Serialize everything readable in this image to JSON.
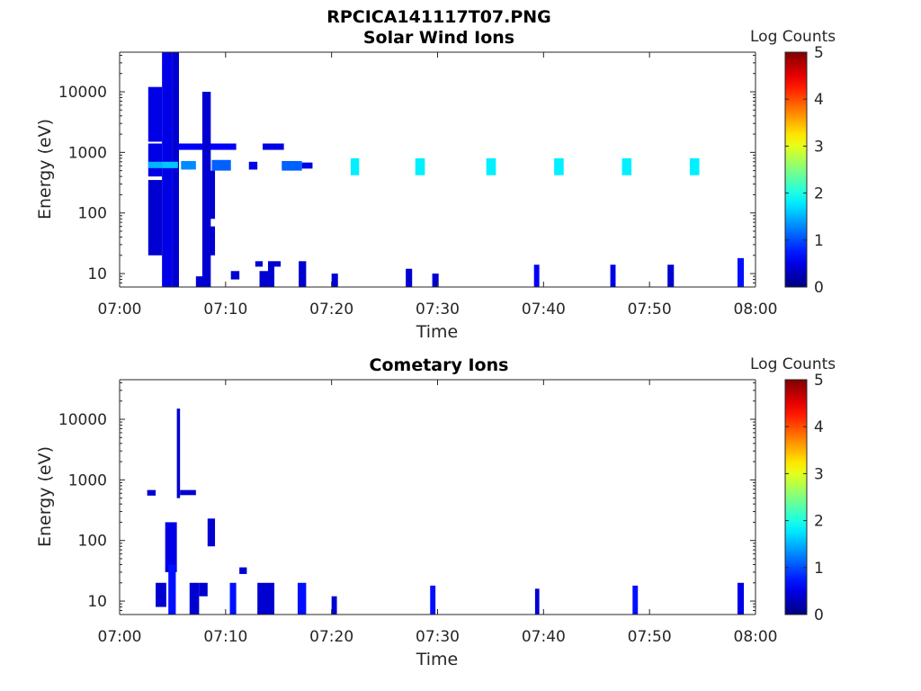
{
  "figure_title": "RPCICA141117T07.PNG",
  "chart_data": [
    {
      "type": "heatmap",
      "title": "Solar Wind Ions",
      "xlabel": "Time",
      "ylabel": "Energy (eV)",
      "x_ticks": [
        "07:00",
        "07:10",
        "07:20",
        "07:30",
        "07:40",
        "07:50",
        "08:00"
      ],
      "xlim": [
        "07:00",
        "08:00"
      ],
      "y_scale": "log",
      "ylim": [
        6,
        45000
      ],
      "y_ticks": [
        10,
        100,
        1000,
        10000
      ],
      "y_tick_labels": [
        "10",
        "100",
        "1000",
        "10000"
      ],
      "colorbar": {
        "label": "Log Counts",
        "min": 0,
        "max": 5,
        "ticks": [
          "0",
          "1",
          "2",
          "3",
          "4",
          "5"
        ],
        "colormap": "jet"
      },
      "cells": [
        {
          "t": [
            4.0,
            5.0
          ],
          "e": [
            5.6,
            45000
          ],
          "v": 0.5
        },
        {
          "t": [
            5.0,
            5.6
          ],
          "e": [
            5.6,
            45000
          ],
          "v": 0.4
        },
        {
          "t": [
            2.7,
            4.0
          ],
          "e": [
            1500,
            12000
          ],
          "v": 0.5
        },
        {
          "t": [
            2.7,
            4.0
          ],
          "e": [
            400,
            1400
          ],
          "v": 0.5
        },
        {
          "t": [
            2.7,
            4.0
          ],
          "e": [
            20,
            350
          ],
          "v": 0.4
        },
        {
          "t": [
            2.7,
            4.0
          ],
          "e": [
            550,
            700
          ],
          "v": 1.5
        },
        {
          "t": [
            4.0,
            5.5
          ],
          "e": [
            550,
            700
          ],
          "v": 1.6
        },
        {
          "t": [
            5.8,
            7.2
          ],
          "e": [
            520,
            720
          ],
          "v": 1.3
        },
        {
          "t": [
            8.7,
            10.5
          ],
          "e": [
            500,
            750
          ],
          "v": 1.1
        },
        {
          "t": [
            12.2,
            13.0
          ],
          "e": [
            520,
            700
          ],
          "v": 0.5
        },
        {
          "t": [
            15.3,
            17.2
          ],
          "e": [
            500,
            720
          ],
          "v": 1.1
        },
        {
          "t": [
            17.2,
            18.2
          ],
          "e": [
            540,
            680
          ],
          "v": 0.5
        },
        {
          "t": [
            21.8,
            22.6
          ],
          "e": [
            420,
            800
          ],
          "v": 1.8
        },
        {
          "t": [
            27.9,
            28.8
          ],
          "e": [
            420,
            800
          ],
          "v": 1.8
        },
        {
          "t": [
            34.6,
            35.5
          ],
          "e": [
            420,
            800
          ],
          "v": 1.8
        },
        {
          "t": [
            41.0,
            41.9
          ],
          "e": [
            420,
            800
          ],
          "v": 1.8
        },
        {
          "t": [
            47.4,
            48.3
          ],
          "e": [
            420,
            800
          ],
          "v": 1.8
        },
        {
          "t": [
            53.8,
            54.7
          ],
          "e": [
            420,
            800
          ],
          "v": 1.8
        },
        {
          "t": [
            5.6,
            11.0
          ],
          "e": [
            1100,
            1400
          ],
          "v": 0.6
        },
        {
          "t": [
            13.5,
            15.5
          ],
          "e": [
            1100,
            1400
          ],
          "v": 0.5
        },
        {
          "t": [
            7.8,
            8.6
          ],
          "e": [
            5,
            10000
          ],
          "v": 0.4
        },
        {
          "t": [
            8.3,
            9.0
          ],
          "e": [
            80,
            500
          ],
          "v": 0.4
        },
        {
          "t": [
            8.2,
            9.0
          ],
          "e": [
            20,
            60
          ],
          "v": 0.4
        },
        {
          "t": [
            7.2,
            8.0
          ],
          "e": [
            5.6,
            9
          ],
          "v": 0.4
        },
        {
          "t": [
            10.5,
            11.3
          ],
          "e": [
            8,
            11
          ],
          "v": 0.4
        },
        {
          "t": [
            12.8,
            13.5
          ],
          "e": [
            13,
            16
          ],
          "v": 0.4
        },
        {
          "t": [
            13.2,
            14.0
          ],
          "e": [
            5.6,
            11
          ],
          "v": 0.4
        },
        {
          "t": [
            14.0,
            14.6
          ],
          "e": [
            5.6,
            16
          ],
          "v": 0.4
        },
        {
          "t": [
            14.5,
            15.2
          ],
          "e": [
            13,
            16
          ],
          "v": 0.4
        },
        {
          "t": [
            16.9,
            17.6
          ],
          "e": [
            5.6,
            16
          ],
          "v": 0.4
        },
        {
          "t": [
            20.0,
            20.6
          ],
          "e": [
            5.6,
            10
          ],
          "v": 0.4
        },
        {
          "t": [
            27.0,
            27.6
          ],
          "e": [
            5.6,
            12
          ],
          "v": 0.4
        },
        {
          "t": [
            29.5,
            30.1
          ],
          "e": [
            5.6,
            10
          ],
          "v": 0.4
        },
        {
          "t": [
            39.1,
            39.6
          ],
          "e": [
            5.6,
            14
          ],
          "v": 0.6
        },
        {
          "t": [
            46.3,
            46.8
          ],
          "e": [
            5.6,
            14
          ],
          "v": 0.5
        },
        {
          "t": [
            51.7,
            52.3
          ],
          "e": [
            5.6,
            14
          ],
          "v": 0.4
        },
        {
          "t": [
            58.3,
            58.9
          ],
          "e": [
            5.6,
            18
          ],
          "v": 0.7
        }
      ]
    },
    {
      "type": "heatmap",
      "title": "Cometary Ions",
      "xlabel": "Time",
      "ylabel": "Energy (eV)",
      "x_ticks": [
        "07:00",
        "07:10",
        "07:20",
        "07:30",
        "07:40",
        "07:50",
        "08:00"
      ],
      "xlim": [
        "07:00",
        "08:00"
      ],
      "y_scale": "log",
      "ylim": [
        6,
        45000
      ],
      "y_ticks": [
        10,
        100,
        1000,
        10000
      ],
      "y_tick_labels": [
        "10",
        "100",
        "1000",
        "10000"
      ],
      "colorbar": {
        "label": "Log Counts",
        "min": 0,
        "max": 5,
        "ticks": [
          "0",
          "1",
          "2",
          "3",
          "4",
          "5"
        ],
        "colormap": "jet"
      },
      "cells": [
        {
          "t": [
            5.4,
            5.7
          ],
          "e": [
            500,
            15000
          ],
          "v": 0.4
        },
        {
          "t": [
            4.3,
            5.4
          ],
          "e": [
            30,
            200
          ],
          "v": 0.5
        },
        {
          "t": [
            4.6,
            5.3
          ],
          "e": [
            5.6,
            40
          ],
          "v": 0.7
        },
        {
          "t": [
            3.4,
            4.4
          ],
          "e": [
            8,
            20
          ],
          "v": 0.4
        },
        {
          "t": [
            2.6,
            3.4
          ],
          "e": [
            550,
            680
          ],
          "v": 0.4
        },
        {
          "t": [
            5.7,
            7.2
          ],
          "e": [
            560,
            680
          ],
          "v": 0.4
        },
        {
          "t": [
            8.3,
            9.0
          ],
          "e": [
            80,
            230
          ],
          "v": 0.4
        },
        {
          "t": [
            6.6,
            7.5
          ],
          "e": [
            5.6,
            20
          ],
          "v": 0.4
        },
        {
          "t": [
            7.5,
            8.3
          ],
          "e": [
            12,
            20
          ],
          "v": 0.4
        },
        {
          "t": [
            10.4,
            11.0
          ],
          "e": [
            5.6,
            20
          ],
          "v": 0.7
        },
        {
          "t": [
            11.3,
            12.0
          ],
          "e": [
            28,
            36
          ],
          "v": 0.4
        },
        {
          "t": [
            13.0,
            14.6
          ],
          "e": [
            5.6,
            20
          ],
          "v": 0.4
        },
        {
          "t": [
            16.8,
            17.6
          ],
          "e": [
            5.6,
            20
          ],
          "v": 0.7
        },
        {
          "t": [
            20.0,
            20.5
          ],
          "e": [
            5.6,
            12
          ],
          "v": 0.4
        },
        {
          "t": [
            29.3,
            29.8
          ],
          "e": [
            5.6,
            18
          ],
          "v": 0.7
        },
        {
          "t": [
            39.2,
            39.6
          ],
          "e": [
            5.6,
            16
          ],
          "v": 0.4
        },
        {
          "t": [
            48.4,
            48.9
          ],
          "e": [
            5.6,
            18
          ],
          "v": 0.7
        },
        {
          "t": [
            58.3,
            58.9
          ],
          "e": [
            5.6,
            20
          ],
          "v": 0.5
        }
      ]
    }
  ]
}
